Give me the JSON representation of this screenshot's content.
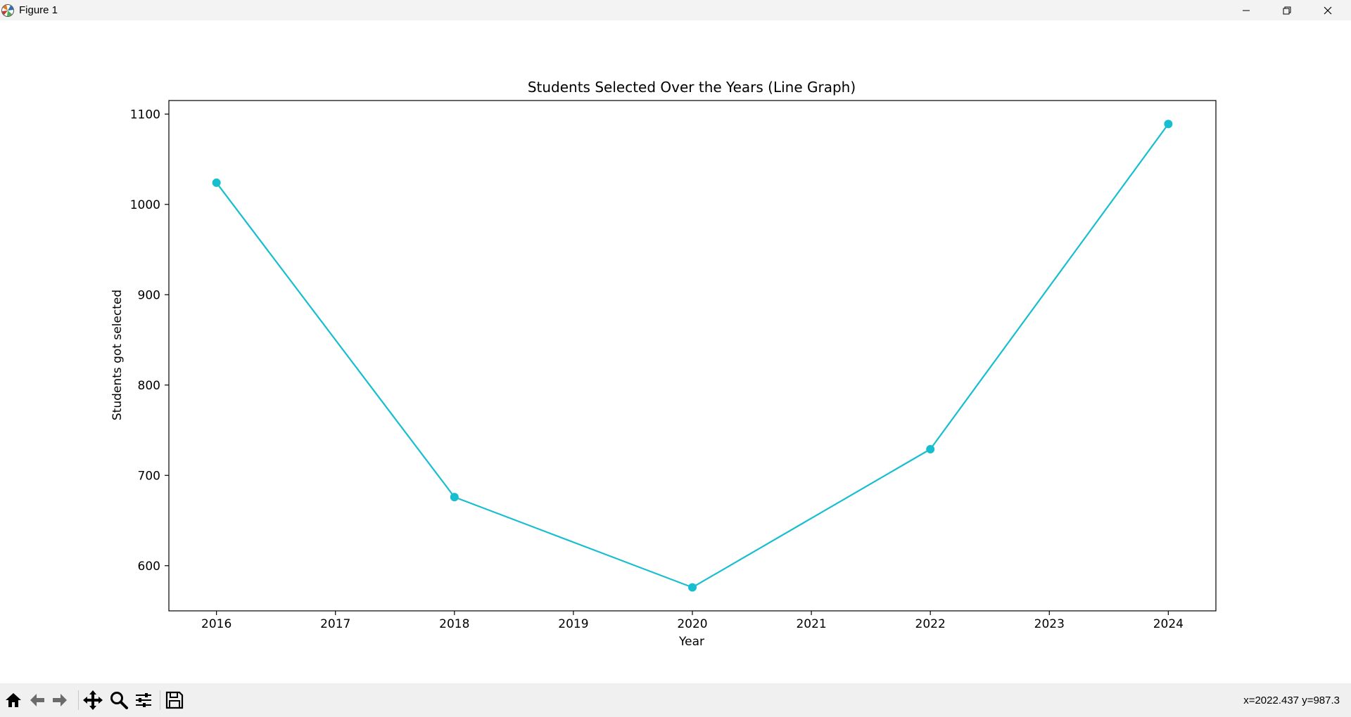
{
  "window": {
    "title": "Figure 1",
    "app_icon": "matplotlib-icon",
    "controls": [
      "minimize-icon",
      "restore-icon",
      "close-icon"
    ]
  },
  "chart_data": {
    "type": "line",
    "title": "Students Selected Over the Years (Line Graph)",
    "xlabel": "Year",
    "ylabel": "Students got selected",
    "x": [
      2016,
      2018,
      2020,
      2022,
      2024
    ],
    "series": [
      {
        "values": [
          1024,
          676,
          576,
          729,
          1089
        ],
        "color": "#17becf",
        "marker": "circle"
      }
    ],
    "xlim": [
      2015.6,
      2024.4
    ],
    "ylim": [
      550,
      1115
    ],
    "xticks": [
      2016,
      2017,
      2018,
      2019,
      2020,
      2021,
      2022,
      2023,
      2024
    ],
    "yticks": [
      600,
      700,
      800,
      900,
      1000,
      1100
    ],
    "grid": false,
    "legend": false
  },
  "toolbar": {
    "tools": [
      "home-icon",
      "back-arrow-icon",
      "forward-arrow-icon",
      "pan-move-icon",
      "zoom-magnifier-icon",
      "configure-subplots-icon",
      "save-floppy-icon"
    ],
    "coordinates": "x=2022.437 y=987.3"
  }
}
